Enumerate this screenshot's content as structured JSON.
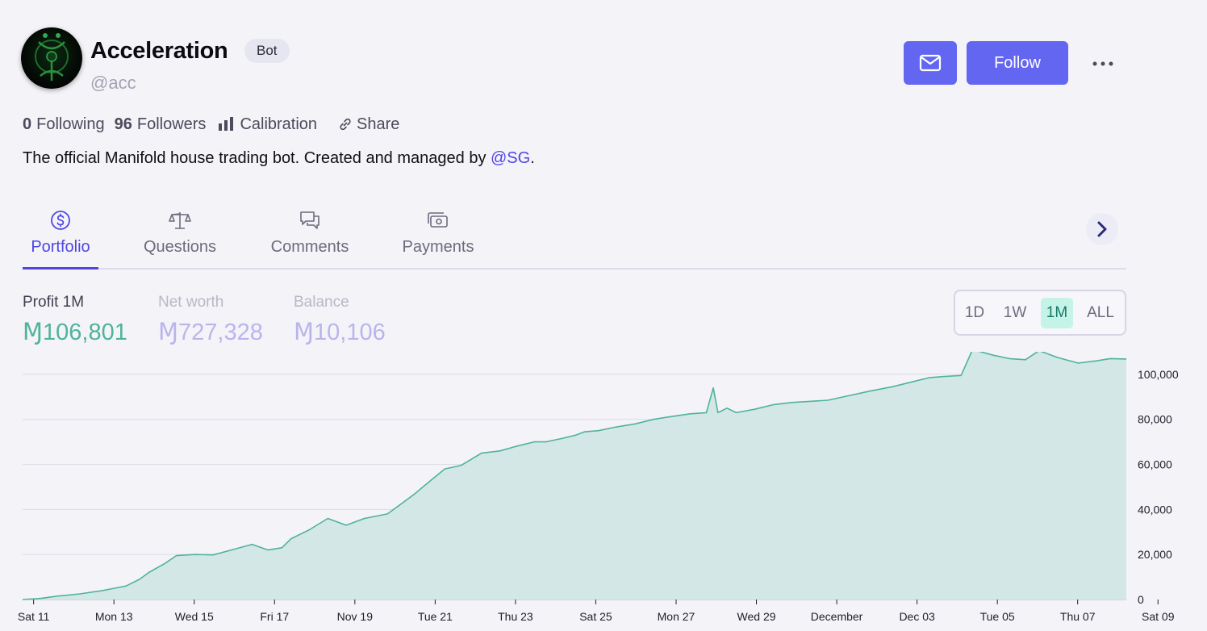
{
  "profile": {
    "name": "Acceleration",
    "badge": "Bot",
    "handle": "@acc",
    "following_count": "0",
    "following_label": "Following",
    "followers_count": "96",
    "followers_label": "Followers",
    "calibration_label": "Calibration",
    "share_label": "Share",
    "bio_text": "The official Manifold house trading bot. Created and managed by ",
    "bio_mention": "@SG",
    "bio_end": "."
  },
  "actions": {
    "message_icon": "mail-icon",
    "follow_label": "Follow",
    "more_icon": "ellipsis-icon"
  },
  "tabs": [
    {
      "label": "Portfolio",
      "icon": "dollar-circle-icon",
      "active": true
    },
    {
      "label": "Questions",
      "icon": "scale-icon",
      "active": false
    },
    {
      "label": "Comments",
      "icon": "chat-bubbles-icon",
      "active": false
    },
    {
      "label": "Payments",
      "icon": "cash-icon",
      "active": false
    }
  ],
  "metrics": [
    {
      "label": "Profit 1M",
      "value": "Ɱ106,801",
      "color": "#4fb39b",
      "label_color": "#3f3f4f"
    },
    {
      "label": "Net worth",
      "value": "Ɱ727,328",
      "color": "#b9b5ec",
      "label_color": "#b8b8c6"
    },
    {
      "label": "Balance",
      "value": "Ɱ10,106",
      "color": "#b9b5ec",
      "label_color": "#b8b8c6"
    }
  ],
  "ranges": {
    "options": [
      "1D",
      "1W",
      "1M",
      "ALL"
    ],
    "selected": "1M"
  },
  "colors": {
    "accent": "#6366f1",
    "profit_line": "#4fb39b",
    "profit_fill": "#d3e7e7"
  },
  "chart_data": {
    "type": "area",
    "title": "",
    "xlabel": "",
    "ylabel": "",
    "ylim": [
      0,
      110000
    ],
    "yticks": [
      0,
      20000,
      40000,
      60000,
      80000,
      100000
    ],
    "ytick_labels": [
      "0",
      "20,000",
      "40,000",
      "60,000",
      "80,000",
      "100,000"
    ],
    "xtick_labels": [
      "Sat 11",
      "Mon 13",
      "Wed 15",
      "Fri 17",
      "Nov 19",
      "Tue 21",
      "Thu 23",
      "Sat 25",
      "Mon 27",
      "Wed 29",
      "December",
      "Dec 03",
      "Tue 05",
      "Thu 07",
      "Sat 09"
    ],
    "x": [
      -0.5,
      0.3,
      1.0,
      2.0,
      3.0,
      3.5,
      4.0,
      4.6,
      5.0,
      5.7,
      6.2,
      7.0,
      7.8,
      8.6,
      9.5,
      10.2,
      10.8,
      11.2,
      12.0,
      12.8,
      13.6,
      14.4,
      15.4,
      16.0,
      16.6,
      17.3,
      17.9,
      18.6,
      19.5,
      20.3,
      21.0,
      21.8,
      22.3,
      23.0,
      23.6,
      24.0,
      24.6,
      25.3,
      26.2,
      27.0,
      27.6,
      28.6,
      29.3,
      29.6,
      29.8,
      30.2,
      30.6,
      31.4,
      32.2,
      33.0,
      33.8,
      34.6,
      35.5,
      36.4,
      37.4,
      38.2,
      39.0,
      39.6,
      40.4,
      40.9,
      41.8,
      42.5,
      43.2,
      43.8,
      44.6,
      45.5,
      46.3,
      46.9,
      47.6
    ],
    "values": [
      0,
      500,
      1500,
      2500,
      4000,
      5000,
      6000,
      9000,
      12000,
      16000,
      19500,
      20000,
      19800,
      22000,
      24500,
      22000,
      23000,
      27000,
      31000,
      36000,
      33000,
      36000,
      38000,
      42500,
      47000,
      53000,
      58000,
      59500,
      65000,
      66000,
      68000,
      70000,
      70000,
      71500,
      73000,
      74500,
      75000,
      76500,
      78000,
      80000,
      81000,
      82500,
      83000,
      94000,
      83000,
      85000,
      83000,
      84500,
      86500,
      87500,
      88000,
      88500,
      90500,
      92500,
      94500,
      96500,
      98500,
      99000,
      99500,
      111000,
      108500,
      107000,
      106500,
      110500,
      107500,
      105000,
      106000,
      107000,
      106800
    ]
  }
}
